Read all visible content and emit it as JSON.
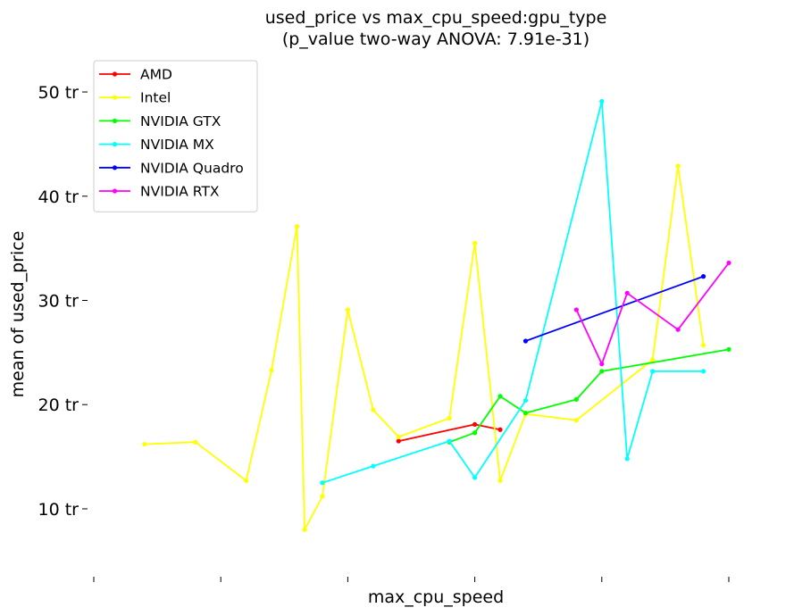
{
  "chart_data": {
    "type": "line",
    "title": "used_price vs max_cpu_speed:gpu_type",
    "subtitle": "(p_value two-way ANOVA: 7.91e-31)",
    "xlabel": "max_cpu_speed",
    "ylabel": "mean of used_price",
    "xlim": [
      -0.1,
      5.1
    ],
    "ylim": [
      4,
      53
    ],
    "x_ticks": [
      0,
      1,
      2,
      3,
      4,
      5
    ],
    "y_ticks": [
      {
        "value": 10,
        "label": "10 tr"
      },
      {
        "value": 20,
        "label": "20 tr"
      },
      {
        "value": 30,
        "label": "30 tr"
      },
      {
        "value": 40,
        "label": "40 tr"
      },
      {
        "value": 50,
        "label": "50 tr"
      }
    ],
    "grid": false,
    "legend": {
      "position": "top-left"
    },
    "series": [
      {
        "name": "AMD",
        "color": "#ff0000",
        "points": [
          [
            2.4,
            16.5
          ],
          [
            3.0,
            18.1
          ],
          [
            3.2,
            17.6
          ]
        ]
      },
      {
        "name": "Intel",
        "color": "#ffff00",
        "points": [
          [
            0.4,
            16.2
          ],
          [
            0.8,
            16.4
          ],
          [
            1.2,
            12.7
          ],
          [
            1.4,
            23.3
          ],
          [
            1.6,
            37.1
          ],
          [
            1.66,
            8.0
          ],
          [
            1.8,
            11.2
          ],
          [
            2.0,
            29.1
          ],
          [
            2.2,
            19.5
          ],
          [
            2.4,
            16.9
          ],
          [
            2.8,
            18.7
          ],
          [
            3.0,
            35.5
          ],
          [
            3.2,
            12.7
          ],
          [
            3.4,
            19.1
          ],
          [
            3.8,
            18.5
          ],
          [
            4.4,
            24.3
          ],
          [
            4.6,
            42.9
          ],
          [
            4.8,
            25.7
          ]
        ]
      },
      {
        "name": "NVIDIA GTX",
        "color": "#00ff00",
        "points": [
          [
            2.8,
            16.4
          ],
          [
            3.0,
            17.3
          ],
          [
            3.2,
            20.8
          ],
          [
            3.4,
            19.2
          ],
          [
            3.8,
            20.5
          ],
          [
            4.0,
            23.2
          ],
          [
            5.0,
            25.3
          ]
        ]
      },
      {
        "name": "NVIDIA MX",
        "color": "#00ffff",
        "points": [
          [
            1.8,
            12.5
          ],
          [
            2.2,
            14.1
          ],
          [
            2.8,
            16.5
          ],
          [
            3.0,
            13.0
          ],
          [
            3.4,
            20.4
          ],
          [
            4.0,
            49.1
          ],
          [
            4.2,
            14.8
          ],
          [
            4.4,
            23.2
          ],
          [
            4.8,
            23.2
          ]
        ]
      },
      {
        "name": "NVIDIA Quadro",
        "color": "#0000ff",
        "points": [
          [
            3.4,
            26.1
          ],
          [
            4.8,
            32.3
          ]
        ]
      },
      {
        "name": "NVIDIA RTX",
        "color": "#ff00ff",
        "points": [
          [
            3.8,
            29.1
          ],
          [
            4.0,
            23.9
          ],
          [
            4.2,
            30.7
          ],
          [
            4.6,
            27.2
          ],
          [
            5.0,
            33.6
          ]
        ]
      }
    ]
  }
}
